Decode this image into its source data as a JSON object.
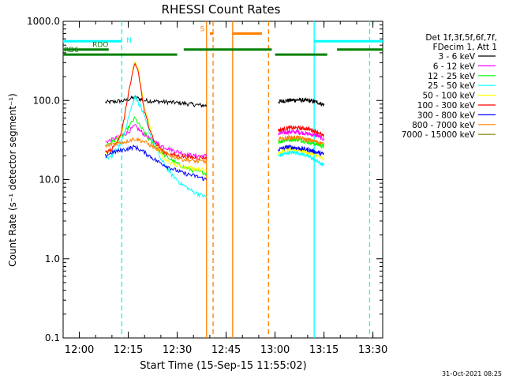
{
  "chart_data": {
    "type": "line",
    "title": "RHESSI Count Rates",
    "xlabel": "Start Time (15-Sep-15 11:55:02)",
    "ylabel": "Count Rate (s⁻¹ detector segment⁻¹)",
    "y_scale": "log",
    "ylim": [
      0.1,
      1000.0
    ],
    "xlim": [
      "11:55:02",
      "13:33:00"
    ],
    "x_ticks": [
      "12:00",
      "12:15",
      "12:30",
      "12:45",
      "13:00",
      "13:15",
      "13:30"
    ],
    "y_ticks": [
      "0.1",
      "1.0",
      "10.0",
      "100.0",
      "1000.0"
    ],
    "legend_header": [
      "Det 1f,3f,5f,6f,7f,",
      "FDecim 1, Att 1"
    ],
    "legend_position": "right",
    "series": [
      {
        "name": "3 - 6 keV",
        "color": "#000000",
        "segments": [
          {
            "x": [
              "12:08",
              "12:10",
              "12:14",
              "12:17",
              "12:20",
              "12:24",
              "12:28",
              "12:32",
              "12:36",
              "12:39"
            ],
            "y": [
              95,
              96,
              100,
              110,
              100,
              97,
              95,
              92,
              88,
              86
            ]
          },
          {
            "x": [
              "13:01",
              "13:04",
              "13:07",
              "13:10",
              "13:13",
              "13:15"
            ],
            "y": [
              97,
              100,
              102,
              100,
              95,
              88
            ]
          }
        ]
      },
      {
        "name": "6 - 12 keV",
        "color": "#ff00ff",
        "segments": [
          {
            "x": [
              "12:08",
              "12:10",
              "12:13",
              "12:15",
              "12:17",
              "12:19",
              "12:22",
              "12:25",
              "12:28",
              "12:31",
              "12:35",
              "12:39"
            ],
            "y": [
              30,
              32,
              36,
              40,
              48,
              40,
              32,
              27,
              24,
              22,
              20,
              20
            ]
          },
          {
            "x": [
              "13:01",
              "13:04",
              "13:07",
              "13:10",
              "13:13",
              "13:15"
            ],
            "y": [
              38,
              40,
              40,
              38,
              36,
              32
            ]
          }
        ]
      },
      {
        "name": "12 - 25 keV",
        "color": "#00ff00",
        "segments": [
          {
            "x": [
              "12:08",
              "12:10",
              "12:13",
              "12:15",
              "12:17",
              "12:19",
              "12:22",
              "12:25",
              "12:28",
              "12:31",
              "12:35",
              "12:39"
            ],
            "y": [
              27,
              30,
              35,
              45,
              60,
              45,
              30,
              22,
              18,
              15,
              13,
              12
            ]
          },
          {
            "x": [
              "13:01",
              "13:04",
              "13:07",
              "13:10",
              "13:13",
              "13:15"
            ],
            "y": [
              30,
              32,
              32,
              30,
              28,
              26
            ]
          }
        ]
      },
      {
        "name": "25 - 50 keV",
        "color": "#00ffff",
        "segments": [
          {
            "x": [
              "12:08",
              "12:10",
              "12:13",
              "12:15",
              "12:17",
              "12:19",
              "12:22",
              "12:25",
              "12:28",
              "12:31",
              "12:35",
              "12:39"
            ],
            "y": [
              18,
              20,
              30,
              60,
              115,
              80,
              35,
              18,
              12,
              9,
              7,
              6
            ]
          },
          {
            "x": [
              "13:01",
              "13:04",
              "13:07",
              "13:10",
              "13:13",
              "13:15"
            ],
            "y": [
              20,
              22,
              22,
              20,
              17,
              15
            ]
          }
        ]
      },
      {
        "name": "50 - 100 keV",
        "color": "#ffff00",
        "segments": [
          {
            "x": [
              "12:08",
              "12:10",
              "12:13",
              "12:15",
              "12:17",
              "12:18",
              "12:20",
              "12:23",
              "12:26",
              "12:30",
              "12:35",
              "12:39"
            ],
            "y": [
              22,
              24,
              40,
              120,
              320,
              260,
              80,
              30,
              18,
              15,
              14,
              13
            ]
          },
          {
            "x": [
              "13:01",
              "13:04",
              "13:07",
              "13:10",
              "13:13",
              "13:15"
            ],
            "y": [
              22,
              24,
              24,
              22,
              20,
              18
            ]
          }
        ]
      },
      {
        "name": "100 - 300 keV",
        "color": "#ff0000",
        "segments": [
          {
            "x": [
              "12:08",
              "12:10",
              "12:13",
              "12:15",
              "12:17",
              "12:18",
              "12:20",
              "12:23",
              "12:26",
              "12:30",
              "12:35",
              "12:39"
            ],
            "y": [
              22,
              24,
              40,
              120,
              290,
              240,
              70,
              30,
              22,
              20,
              19,
              19
            ]
          },
          {
            "x": [
              "13:01",
              "13:04",
              "13:07",
              "13:10",
              "13:13",
              "13:15"
            ],
            "y": [
              42,
              45,
              45,
              44,
              40,
              35
            ]
          }
        ]
      },
      {
        "name": "300 - 800 keV",
        "color": "#0000ff",
        "segments": [
          {
            "x": [
              "12:08",
              "12:10",
              "12:14",
              "12:17",
              "12:20",
              "12:24",
              "12:28",
              "12:32",
              "12:36",
              "12:39"
            ],
            "y": [
              20,
              22,
              24,
              26,
              22,
              17,
              14,
              12,
              11,
              10
            ]
          },
          {
            "x": [
              "13:01",
              "13:04",
              "13:07",
              "13:10",
              "13:13",
              "13:15"
            ],
            "y": [
              24,
              26,
              25,
              24,
              22,
              21
            ]
          }
        ]
      },
      {
        "name": "800 - 7000 keV",
        "color": "#ff8000",
        "segments": [
          {
            "x": [
              "12:08",
              "12:10",
              "12:14",
              "12:17",
              "12:20",
              "12:24",
              "12:28",
              "12:32",
              "12:36",
              "12:39"
            ],
            "y": [
              26,
              28,
              30,
              33,
              30,
              24,
              20,
              18,
              17,
              17
            ]
          },
          {
            "x": [
              "13:01",
              "13:04",
              "13:07",
              "13:10",
              "13:13",
              "13:15"
            ],
            "y": [
              32,
              34,
              34,
              32,
              30,
              28
            ]
          }
        ]
      },
      {
        "name": "7000 - 15000 keV",
        "color": "#808000",
        "segments": []
      }
    ],
    "annotations": {
      "attenuator_bars": [
        {
          "label": "N",
          "color": "#00ffff",
          "y": 560,
          "ranges": [
            [
              "11:55",
              "12:13"
            ],
            [
              "13:12",
              "13:33"
            ]
          ]
        },
        {
          "label": "RDO",
          "color": "#008000",
          "y": 440,
          "ranges": [
            [
              "11:55",
              "12:09"
            ],
            [
              "12:32",
              "12:59"
            ],
            [
              "13:19",
              "13:33"
            ]
          ]
        },
        {
          "label": "RD6",
          "color": "#008000",
          "y": 380,
          "ranges": [
            [
              "11:55",
              "12:30"
            ],
            [
              "13:00",
              "13:16"
            ]
          ]
        },
        {
          "label": "S",
          "color": "#ff8000",
          "y": 700,
          "ranges": [
            [
              "12:40",
              "12:41"
            ],
            [
              "12:47",
              "12:56"
            ]
          ]
        }
      ],
      "vertical_lines": [
        {
          "x": "12:13",
          "color": "#00ffff",
          "style": "dashed"
        },
        {
          "x": "13:12",
          "color": "#00ffff",
          "style": "solid"
        },
        {
          "x": "13:29",
          "color": "#00ffff",
          "style": "dashed"
        },
        {
          "x": "12:39",
          "color": "#ff8000",
          "style": "solid"
        },
        {
          "x": "12:41",
          "color": "#ff8000",
          "style": "dashed"
        },
        {
          "x": "12:47",
          "color": "#ff8000",
          "style": "solid"
        },
        {
          "x": "12:58",
          "color": "#ff8000",
          "style": "dashed"
        }
      ]
    },
    "grid": false
  },
  "footer": {
    "timestamp": "31-Oct-2021 08:25"
  }
}
